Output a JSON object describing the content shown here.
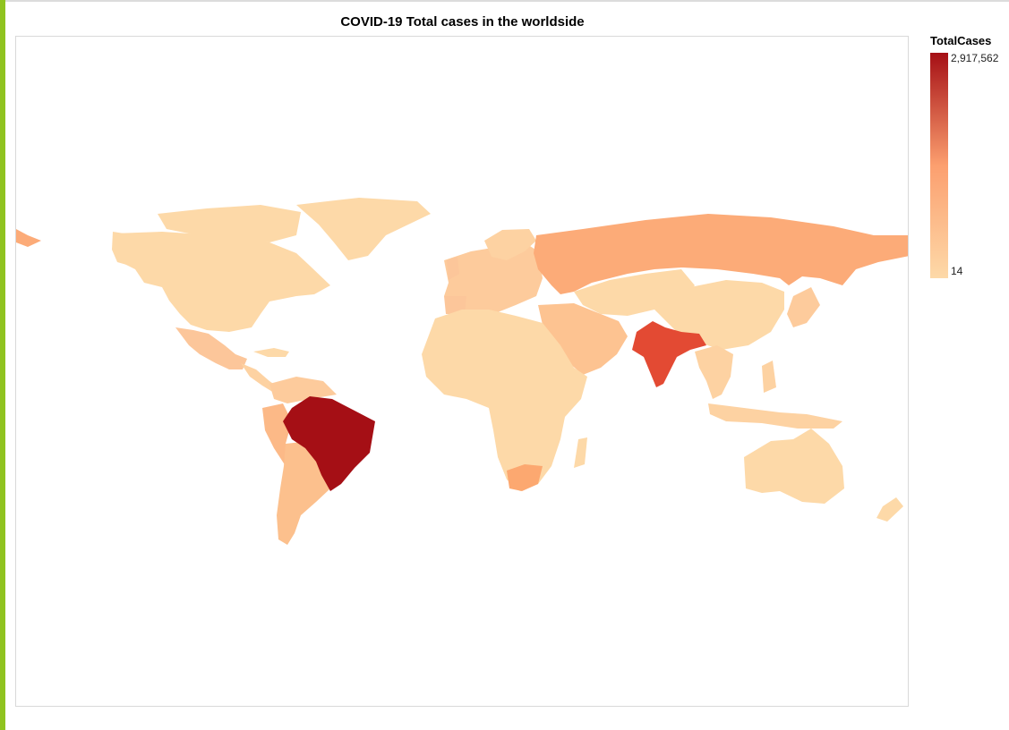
{
  "title": "COVID-19 Total cases in the worldside",
  "legend": {
    "title": "TotalCases",
    "max_label": "2,917,562",
    "min_label": "14"
  },
  "colors": {
    "ramp_high": "#a50f15",
    "ramp_mid": "#fc9f6f",
    "ramp_low": "#fdd9a8",
    "accent": "#8fc31f"
  },
  "chart_data": {
    "type": "choropleth",
    "value_field": "TotalCases",
    "scale": {
      "min": 14,
      "max": 2917562
    },
    "highlighted_regions": [
      {
        "name": "Brazil",
        "level": 1.0
      },
      {
        "name": "India",
        "level": 0.78
      },
      {
        "name": "Russia",
        "level": 0.45
      },
      {
        "name": "South Africa",
        "level": 0.35
      },
      {
        "name": "Mexico",
        "level": 0.25
      },
      {
        "name": "Peru",
        "level": 0.25
      },
      {
        "name": "Chile",
        "level": 0.22
      },
      {
        "name": "Argentina",
        "level": 0.2
      }
    ]
  }
}
